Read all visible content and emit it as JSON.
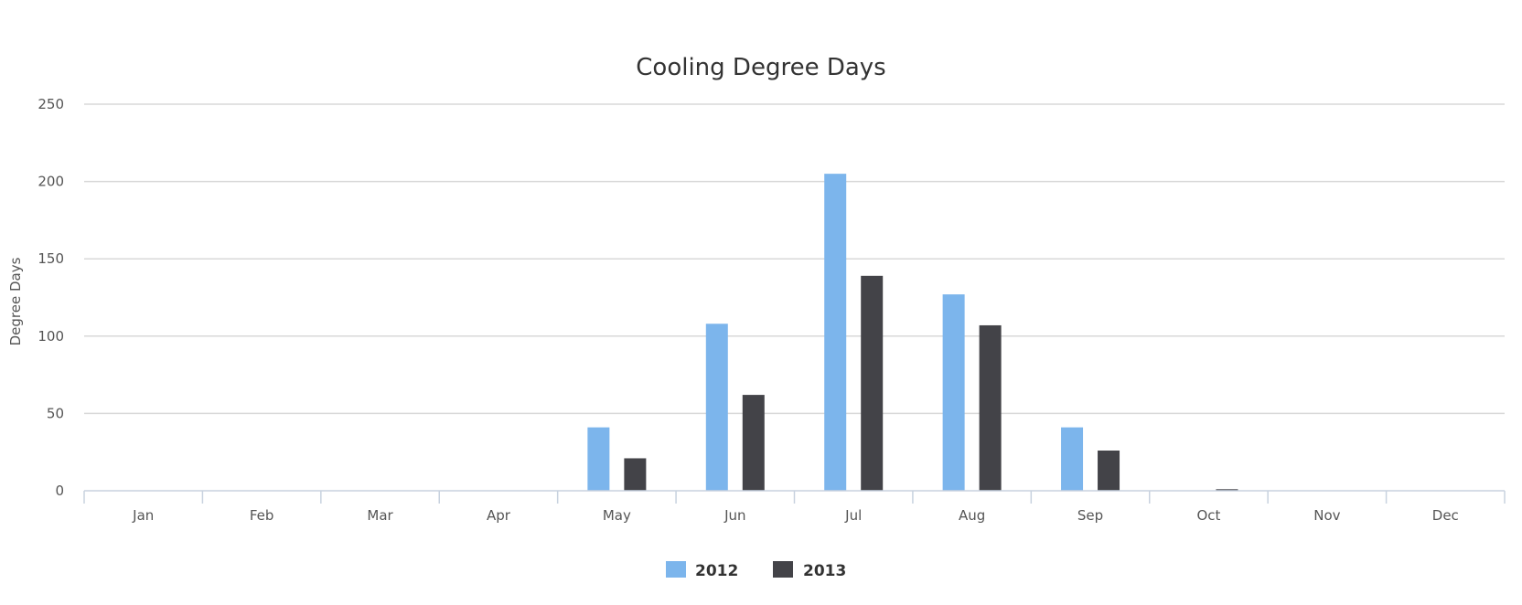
{
  "chart_data": {
    "type": "bar",
    "title": "Cooling Degree Days",
    "xlabel": "",
    "ylabel": "Degree Days",
    "categories": [
      "Jan",
      "Feb",
      "Mar",
      "Apr",
      "May",
      "Jun",
      "Jul",
      "Aug",
      "Sep",
      "Oct",
      "Nov",
      "Dec"
    ],
    "series": [
      {
        "name": "2012",
        "color": "#7cb5ec",
        "values": [
          0,
          0,
          0,
          0,
          41,
          108,
          205,
          127,
          41,
          0,
          0,
          0
        ]
      },
      {
        "name": "2013",
        "color": "#434348",
        "values": [
          0,
          0,
          0,
          0,
          21,
          62,
          139,
          107,
          26,
          1,
          0,
          0
        ]
      }
    ],
    "yticks": [
      0,
      50,
      100,
      150,
      200,
      250
    ],
    "ylim": [
      0,
      250
    ],
    "grid": true,
    "legend": "bottom-center"
  }
}
